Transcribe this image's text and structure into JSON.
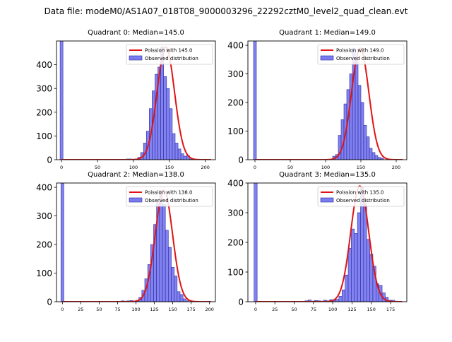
{
  "figure": {
    "suptitle": "Data file: modeM0/AS1A07_018T08_9000003296_22292cztM0_level2_quad_clean.evt"
  },
  "colors": {
    "bar_fill": "#7b7bef",
    "bar_edge": "#2a2aa0",
    "fit_line": "#e01414",
    "axis": "#000000"
  },
  "chart_data": [
    {
      "type": "bar",
      "title": "Quadrant 0: Median=145.0",
      "xlim": [
        -7,
        214
      ],
      "ylim": [
        0,
        500
      ],
      "xticks": [
        0,
        50,
        100,
        150,
        200
      ],
      "yticks": [
        0,
        100,
        200,
        300,
        400
      ],
      "legend": [
        "Poission with 145.0",
        "Observed distribution"
      ],
      "legend_position": "top-right",
      "poisson_mean": 145.0,
      "poisson_peak": 475,
      "bin_width": 4,
      "spike": {
        "x": 0,
        "value": 500
      },
      "bin_start": 90,
      "values": [
        3,
        3,
        2,
        3,
        10,
        30,
        70,
        120,
        215,
        290,
        360,
        390,
        475,
        350,
        300,
        215,
        110,
        70,
        45,
        25,
        15,
        17,
        3,
        2,
        1
      ]
    },
    {
      "type": "bar",
      "title": "Quadrant 1: Median=149.0",
      "xlim": [
        -10,
        215
      ],
      "ylim": [
        0,
        415
      ],
      "xticks": [
        0,
        50,
        100,
        150,
        200
      ],
      "yticks": [
        0,
        100,
        200,
        300,
        400
      ],
      "legend": [
        "Poission with 149.0",
        "Observed distribution"
      ],
      "legend_position": "top-right",
      "poisson_mean": 149.0,
      "poisson_peak": 390,
      "bin_width": 4,
      "spike": {
        "x": 0,
        "value": 415
      },
      "bin_start": 110,
      "values": [
        12,
        18,
        85,
        140,
        195,
        245,
        300,
        390,
        350,
        260,
        200,
        120,
        80,
        40,
        25,
        15,
        8,
        5
      ]
    },
    {
      "type": "bar",
      "title": "Quadrant 2: Median=138.0",
      "xlim": [
        -8,
        208
      ],
      "ylim": [
        0,
        415
      ],
      "xticks": [
        0,
        25,
        50,
        75,
        100,
        125,
        150,
        175,
        200
      ],
      "yticks": [
        0,
        100,
        200,
        300,
        400
      ],
      "legend": [
        "Poission with 138.0",
        "Observed distribution"
      ],
      "legend_position": "top-right",
      "poisson_mean": 138.0,
      "poisson_peak": 390,
      "bin_width": 4,
      "spike": {
        "x": 0,
        "value": 415
      },
      "bin_start": 80,
      "values": [
        3,
        2,
        3,
        4,
        2,
        5,
        15,
        40,
        80,
        130,
        200,
        270,
        350,
        390,
        340,
        250,
        190,
        120,
        90,
        35,
        25,
        10,
        3
      ]
    },
    {
      "type": "bar",
      "title": "Quadrant 3: Median=135.0",
      "xlim": [
        -10,
        196
      ],
      "ylim": [
        0,
        400
      ],
      "xticks": [
        0,
        25,
        50,
        75,
        100,
        125,
        150,
        175
      ],
      "yticks": [
        0,
        100,
        200,
        300,
        400
      ],
      "legend": [
        "Poission with 135.0",
        "Observed distribution"
      ],
      "legend_position": "top-right",
      "poisson_mean": 135.0,
      "poisson_peak": 390,
      "bin_width": 4,
      "spike": {
        "x": 0,
        "value": 400
      },
      "bin_start": 64,
      "values": [
        3,
        6,
        2,
        4,
        3,
        2,
        5,
        3,
        7,
        5,
        8,
        18,
        40,
        90,
        180,
        245,
        230,
        300,
        385,
        330,
        210,
        160,
        120,
        60,
        55,
        30,
        15,
        5,
        5,
        2
      ]
    }
  ]
}
